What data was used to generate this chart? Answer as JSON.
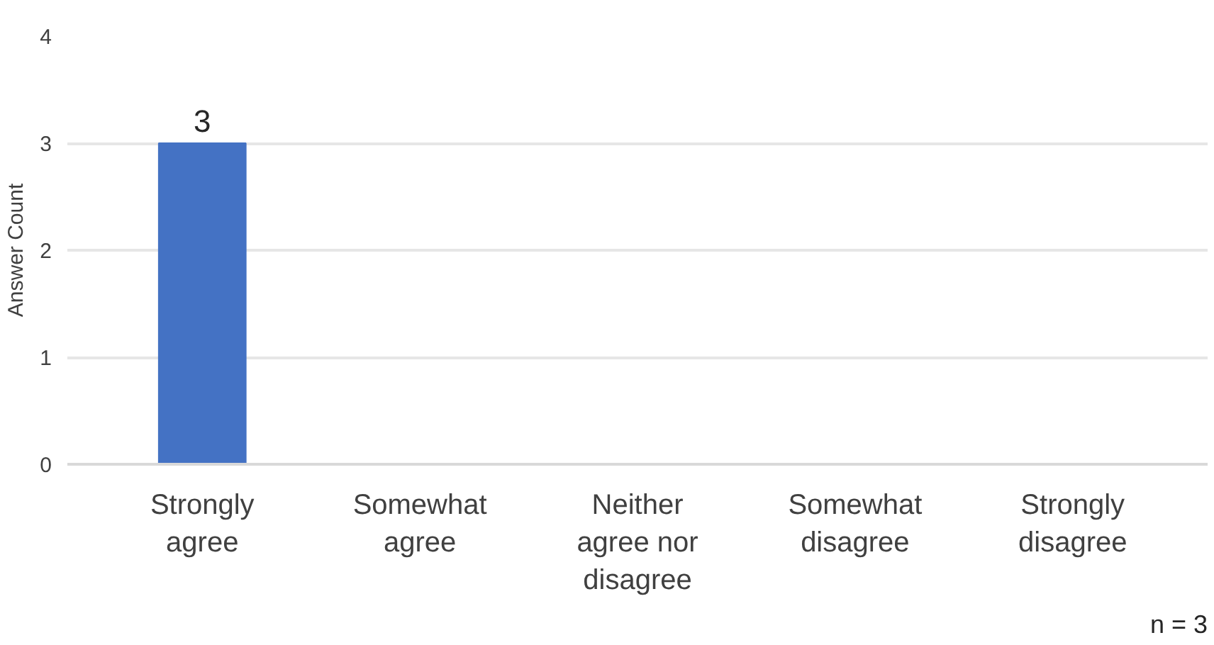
{
  "chart_data": {
    "type": "bar",
    "ylabel": "Answer Count",
    "categories": [
      "Strongly\nagree",
      "Somewhat\nagree",
      "Neither\nagree nor\ndisagree",
      "Somewhat\ndisagree",
      "Strongly\ndisagree"
    ],
    "values": [
      3,
      0,
      0,
      0,
      0
    ],
    "color": "#4472c4",
    "value_labels": [
      "3",
      null,
      null,
      null,
      null
    ],
    "ylim": [
      0,
      4
    ],
    "yticks": [
      0,
      1,
      2,
      3,
      4
    ],
    "grid": "y",
    "annotations": [
      "n = 3"
    ]
  }
}
